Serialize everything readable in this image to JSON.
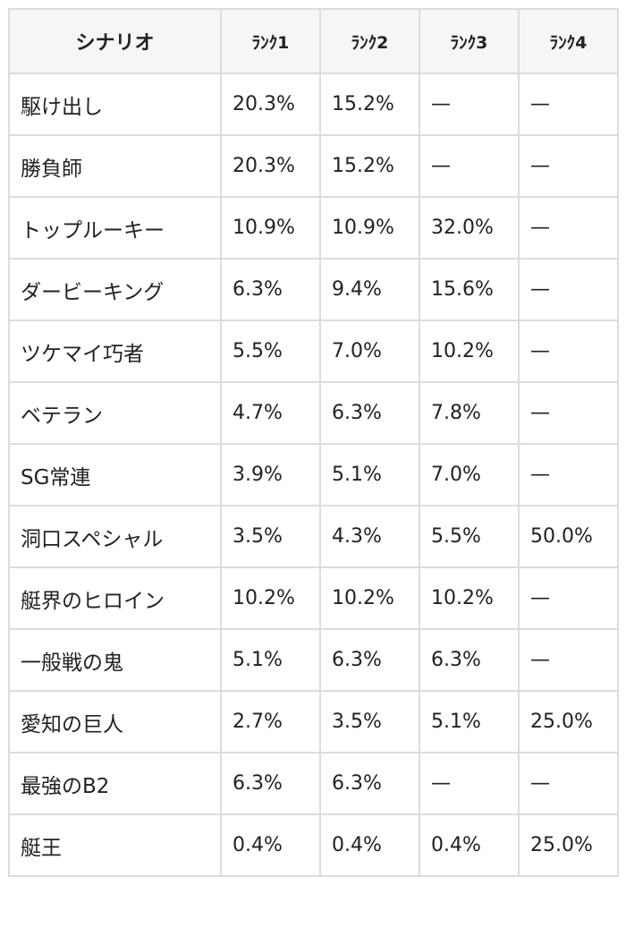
{
  "table": {
    "headers": [
      "シナリオ",
      "ﾗﾝｸ1",
      "ﾗﾝｸ2",
      "ﾗﾝｸ3",
      "ﾗﾝｸ4"
    ],
    "rows": [
      [
        "駆け出し",
        "20.3%",
        "15.2%",
        "—",
        "—"
      ],
      [
        "勝負師",
        "20.3%",
        "15.2%",
        "—",
        "—"
      ],
      [
        "トップルーキー",
        "10.9%",
        "10.9%",
        "32.0%",
        "—"
      ],
      [
        "ダービーキング",
        "6.3%",
        "9.4%",
        "15.6%",
        "—"
      ],
      [
        "ツケマイ巧者",
        "5.5%",
        "7.0%",
        "10.2%",
        "—"
      ],
      [
        "ベテラン",
        "4.7%",
        "6.3%",
        "7.8%",
        "—"
      ],
      [
        "SG常連",
        "3.9%",
        "5.1%",
        "7.0%",
        "—"
      ],
      [
        "洞口スペシャル",
        "3.5%",
        "4.3%",
        "5.5%",
        "50.0%"
      ],
      [
        "艇界のヒロイン",
        "10.2%",
        "10.2%",
        "10.2%",
        "—"
      ],
      [
        "一般戦の鬼",
        "5.1%",
        "6.3%",
        "6.3%",
        "—"
      ],
      [
        "愛知の巨人",
        "2.7%",
        "3.5%",
        "5.1%",
        "25.0%"
      ],
      [
        "最強のB2",
        "6.3%",
        "6.3%",
        "—",
        "—"
      ],
      [
        "艇王",
        "0.4%",
        "0.4%",
        "0.4%",
        "25.0%"
      ]
    ]
  },
  "colors": {
    "border": "#dcdcdc",
    "header_background": "#f6f6f6",
    "text": "#222222"
  }
}
